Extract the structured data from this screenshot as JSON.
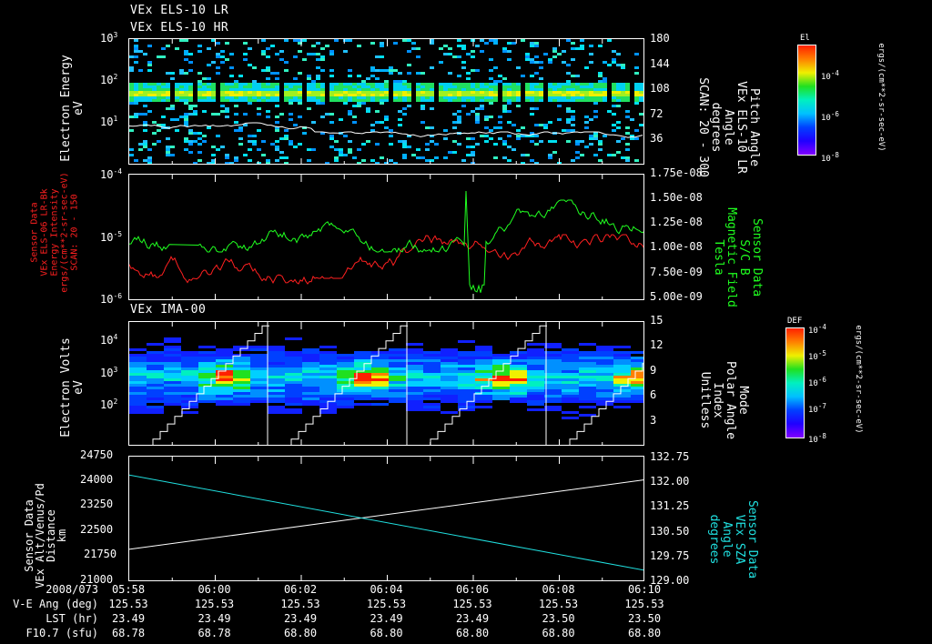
{
  "chart_data": [
    {
      "type": "heatmap",
      "title": [
        "VEx ELS-10 LR",
        "VEx ELS-10 HR"
      ],
      "ylabel": "Electron Energy\neV",
      "yscale": "log",
      "ylim": [
        1,
        1000
      ],
      "yticks": [
        "10^1",
        "10^2",
        "10^3"
      ],
      "y2label": "Pitch Angle\nVEx ELS-10 LR\nAngle\ndegrees\nSCAN: 20 - 300",
      "y2ticks": [
        36,
        72,
        108,
        144,
        180
      ],
      "y2lim": [
        0,
        180
      ],
      "colorbar": {
        "label": "El",
        "units": "ergs/(cm**2-sr-sec-eV)",
        "ticks": [
          "10^-8",
          "10^-6",
          "10^-4"
        ]
      },
      "description": "Intense band near 30-50 eV (green/yellow), scattered blue/cyan pixels elsewhere; white pitch angle overlay near 7-9 eV level decreasing to ~4"
    },
    {
      "type": "line",
      "ylabel": "Sensor Data\nVEx ELS-06 LR-Bk\nEnergy Intensity\nergs/(cm**2-sr-sec-eV)\nSCAN: 20 - 150",
      "yscale": "log",
      "ylim": [
        1e-06,
        0.0001
      ],
      "yticks": [
        "10^-6",
        "10^-5",
        "10^-4"
      ],
      "y2label": "Sensor Data\nS/C B\nMagnetic Field\nTesla",
      "y2ticks": [
        "5.00e-09",
        "7.50e-09",
        "1.00e-08",
        "1.25e-08",
        "1.50e-08",
        "1.75e-08"
      ],
      "y2lim": [
        5e-09,
        1.75e-08
      ],
      "series": [
        {
          "name": "ELS-06 LR-Bk Energy Intensity",
          "color": "#ff2020",
          "approx_range": "7e-6 to 1.2e-5"
        },
        {
          "name": "S/C B Magnetic Field",
          "color": "#20ff20",
          "approx_range": "1.0e-8 to 1.4e-8, dip to 5e-9 near 06:06"
        }
      ]
    },
    {
      "type": "heatmap",
      "title": "VEx IMA-00",
      "ylabel": "Electron Volts\neV",
      "yscale": "log",
      "yticks": [
        "10^2",
        "10^3",
        "10^4"
      ],
      "y2label": "Mode\nPolar Angle\nIndex\nUnitless",
      "y2ticks": [
        3,
        6,
        9,
        12,
        15
      ],
      "y2lim": [
        0,
        15
      ],
      "colorbar": {
        "label": "DEF",
        "units": "ergs/(cm**2-sr-sec-eV)",
        "ticks": [
          "10^-8",
          "10^-7",
          "10^-6",
          "10^-5",
          "10^-4"
        ]
      },
      "description": "Four scan cycles; peak (red) near 1e3 eV around 06:01, 06:04, 06:07, 06:10; white staircase polar angle index rising 0-15 each cycle"
    },
    {
      "type": "line",
      "ylabel": "Sensor Data\nVEx Alt/Venus/Pd\nDistance\nkm",
      "ylim": [
        21000,
        24750
      ],
      "yticks": [
        21000,
        21750,
        22500,
        23250,
        24000,
        24750
      ],
      "y2label": "Sensor Data\nVEx SZA\nAngle\ndegrees",
      "y2lim": [
        129.0,
        132.75
      ],
      "y2ticks": [
        "129.00",
        "129.75",
        "130.50",
        "131.25",
        "132.00",
        "132.75"
      ],
      "series": [
        {
          "name": "VEx Alt (km)",
          "color": "#ffffff",
          "x": [
            "05:58",
            "06:10"
          ],
          "values": [
            21980,
            24060
          ]
        },
        {
          "name": "VEx SZA (deg)",
          "color": "#20e0e0",
          "x": [
            "05:58",
            "06:10"
          ],
          "values": [
            132.2,
            129.35
          ]
        }
      ]
    }
  ],
  "panels": {
    "p1": {
      "title1": "VEx ELS-10 LR",
      "title2": "VEx ELS-10 HR",
      "ylabel1": "Electron Energy",
      "ylabel2": "eV",
      "yticks": [
        {
          "base": "10",
          "exp": "3"
        },
        {
          "base": "10",
          "exp": "2"
        },
        {
          "base": "10",
          "exp": "1"
        }
      ],
      "rticks": [
        "180",
        "144",
        "108",
        "72",
        "36"
      ],
      "rlabel": [
        "Pitch Angle",
        "VEx ELS-10 LR",
        "Angle",
        "degrees",
        "SCAN: 20 - 300"
      ],
      "cbar_title": "El",
      "cbar_ticks": [
        {
          "base": "10",
          "exp": "-4"
        },
        {
          "base": "10",
          "exp": "-6"
        },
        {
          "base": "10",
          "exp": "-8"
        }
      ],
      "cbar_units": "ergs/(cm**2-sr-sec-eV)"
    },
    "p2": {
      "yticks": [
        {
          "base": "10",
          "exp": "-4"
        },
        {
          "base": "10",
          "exp": "-5"
        },
        {
          "base": "10",
          "exp": "-6"
        }
      ],
      "llabel": [
        "Sensor Data",
        "VEx ELS-06 LR-Bk",
        "Energy Intensity",
        "ergs/(cm**2-sr-sec-eV)",
        "SCAN: 20 - 150"
      ],
      "rticks": [
        "1.75e-08",
        "1.50e-08",
        "1.25e-08",
        "1.00e-08",
        "7.50e-09",
        "5.00e-09"
      ],
      "rlabel": [
        "Sensor Data",
        "S/C B",
        "Magnetic Field",
        "Tesla"
      ],
      "colors": {
        "left": "#ff2020",
        "right": "#20ff20"
      }
    },
    "p3": {
      "title": "VEx IMA-00",
      "ylabel1": "Electron Volts",
      "ylabel2": "eV",
      "yticks": [
        {
          "base": "10",
          "exp": "4"
        },
        {
          "base": "10",
          "exp": "3"
        },
        {
          "base": "10",
          "exp": "2"
        }
      ],
      "rticks": [
        "15",
        "12",
        "9",
        "6",
        "3"
      ],
      "rlabel": [
        "Mode",
        "Polar Angle",
        "Index",
        "Unitless"
      ],
      "cbar_title": "DEF",
      "cbar_ticks": [
        {
          "base": "10",
          "exp": "-4"
        },
        {
          "base": "10",
          "exp": "-5"
        },
        {
          "base": "10",
          "exp": "-6"
        },
        {
          "base": "10",
          "exp": "-7"
        },
        {
          "base": "10",
          "exp": "-8"
        }
      ],
      "cbar_units": "ergs/(cm**2-sr-sec-eV)"
    },
    "p4": {
      "yticks": [
        "24750",
        "24000",
        "23250",
        "22500",
        "21750",
        "21000"
      ],
      "llabel": [
        "Sensor Data",
        "VEx Alt/Venus/Pd",
        "Distance",
        "km"
      ],
      "rticks": [
        "132.75",
        "132.00",
        "131.25",
        "130.50",
        "129.75",
        "129.00"
      ],
      "rlabel": [
        "Sensor Data",
        "VEx SZA",
        "Angle",
        "degrees"
      ],
      "colors": {
        "left": "#ffffff",
        "right": "#20e0e0"
      }
    }
  },
  "footer": {
    "row_labels": [
      "2008/073",
      "V-E Ang (deg)",
      "LST (hr)",
      "F10.7 (sfu)"
    ],
    "columns": [
      {
        "time": "05:58",
        "ve_ang": "125.53",
        "lst": "23.49",
        "f107": "68.78"
      },
      {
        "time": "06:00",
        "ve_ang": "125.53",
        "lst": "23.49",
        "f107": "68.78"
      },
      {
        "time": "06:02",
        "ve_ang": "125.53",
        "lst": "23.49",
        "f107": "68.80"
      },
      {
        "time": "06:04",
        "ve_ang": "125.53",
        "lst": "23.49",
        "f107": "68.80"
      },
      {
        "time": "06:06",
        "ve_ang": "125.53",
        "lst": "23.49",
        "f107": "68.80"
      },
      {
        "time": "06:08",
        "ve_ang": "125.53",
        "lst": "23.50",
        "f107": "68.80"
      },
      {
        "time": "06:10",
        "ve_ang": "125.53",
        "lst": "23.50",
        "f107": "68.80"
      }
    ]
  }
}
